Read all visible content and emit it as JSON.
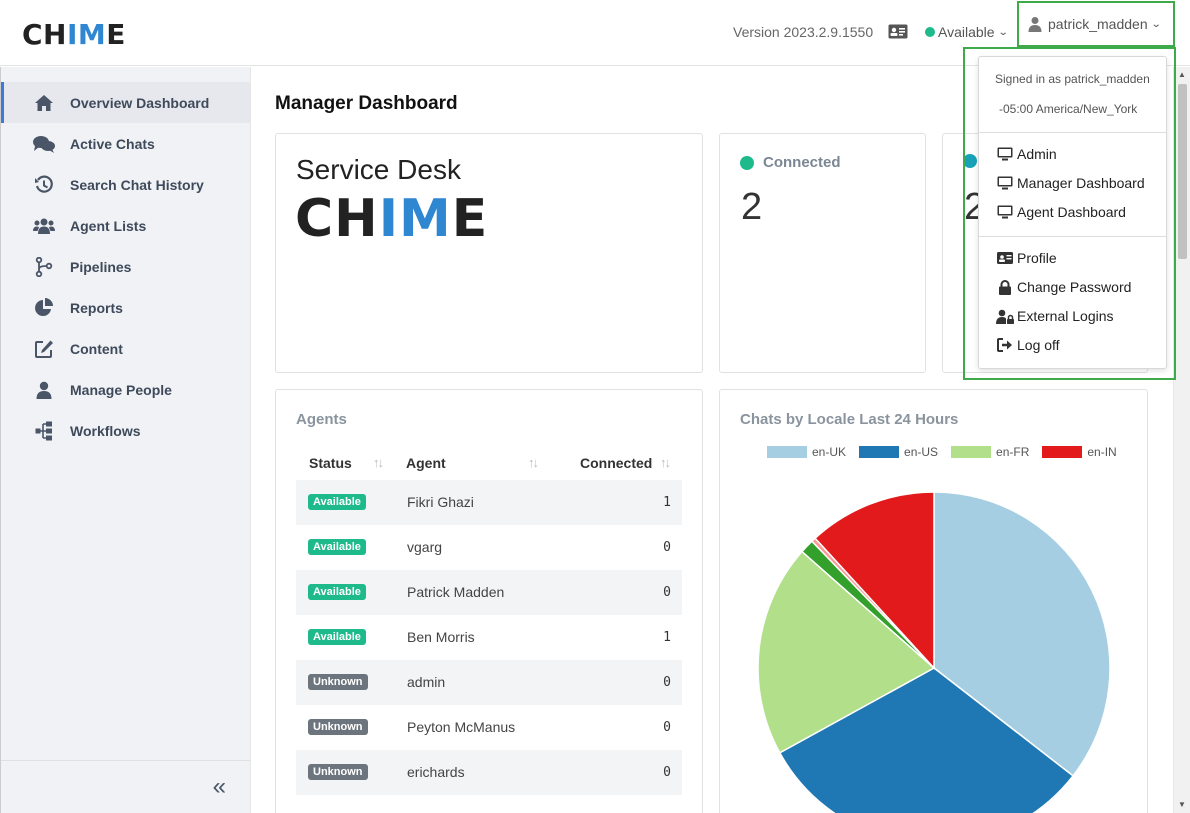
{
  "header": {
    "logo_prefix": "CH",
    "logo_blue": "IM",
    "logo_suffix": "E",
    "version": "Version 2023.2.9.1550",
    "status": "Available",
    "username": "patrick_madden"
  },
  "sidebar": {
    "items": [
      {
        "label": "Overview Dashboard",
        "icon": "home-icon"
      },
      {
        "label": "Active Chats",
        "icon": "chat-bubbles-icon"
      },
      {
        "label": "Search Chat History",
        "icon": "history-icon"
      },
      {
        "label": "Agent Lists",
        "icon": "users-icon"
      },
      {
        "label": "Pipelines",
        "icon": "code-branch-icon"
      },
      {
        "label": "Reports",
        "icon": "pie-chart-icon"
      },
      {
        "label": "Content",
        "icon": "edit-icon"
      },
      {
        "label": "Manage People",
        "icon": "user-icon"
      },
      {
        "label": "Workflows",
        "icon": "sitemap-icon"
      }
    ],
    "collapse_label": "«"
  },
  "main": {
    "title": "Manager Dashboard",
    "service_desk": {
      "title": "Service Desk",
      "logo_prefix": "CH",
      "logo_blue": "IM",
      "logo_suffix": "E"
    },
    "stats": [
      {
        "label": "Connected",
        "value": "2",
        "color": "#1fba8c"
      },
      {
        "label": "",
        "value": "2",
        "color": "#17a2b8"
      }
    ],
    "agents": {
      "title": "Agents",
      "columns": [
        "Status",
        "Agent",
        "Connected"
      ],
      "rows": [
        {
          "status": "Available",
          "name": "Fikri Ghazi",
          "connected": "1"
        },
        {
          "status": "Available",
          "name": "vgarg",
          "connected": "0"
        },
        {
          "status": "Available",
          "name": "Patrick Madden",
          "connected": "0"
        },
        {
          "status": "Available",
          "name": "Ben Morris",
          "connected": "1"
        },
        {
          "status": "Unknown",
          "name": "admin",
          "connected": "0"
        },
        {
          "status": "Unknown",
          "name": "Peyton McManus",
          "connected": "0"
        },
        {
          "status": "Unknown",
          "name": "erichards",
          "connected": "0"
        }
      ]
    }
  },
  "chart_data": {
    "type": "pie",
    "title": "Chats by Locale Last 24 Hours",
    "legend_position": "top",
    "slices": [
      {
        "label": "en-UK",
        "value": 35.5,
        "color": "#a6cee3"
      },
      {
        "label": "en-US",
        "value": 31.5,
        "color": "#1f78b4"
      },
      {
        "label": "en-FR",
        "value": 19.5,
        "color": "#b2df8a"
      },
      {
        "label": "",
        "value": 1.3,
        "color": "#33a02c"
      },
      {
        "label": "",
        "value": 0.4,
        "color": "#fb9a99"
      },
      {
        "label": "en-IN",
        "value": 11.8,
        "color": "#e31a1c"
      }
    ]
  },
  "dropdown": {
    "signed_in": "Signed in as patrick_madden",
    "timezone": "-05:00 America/New_York",
    "items": [
      {
        "label": "Admin",
        "icon": "monitor-icon"
      },
      {
        "label": "Manager Dashboard",
        "icon": "monitor-icon"
      },
      {
        "label": "Agent Dashboard",
        "icon": "monitor-icon"
      },
      {
        "label": "Profile",
        "icon": "id-card-icon"
      },
      {
        "label": "Change Password",
        "icon": "lock-icon"
      },
      {
        "label": "External Logins",
        "icon": "user-lock-icon"
      },
      {
        "label": "Log off",
        "icon": "sign-out-icon"
      }
    ]
  }
}
